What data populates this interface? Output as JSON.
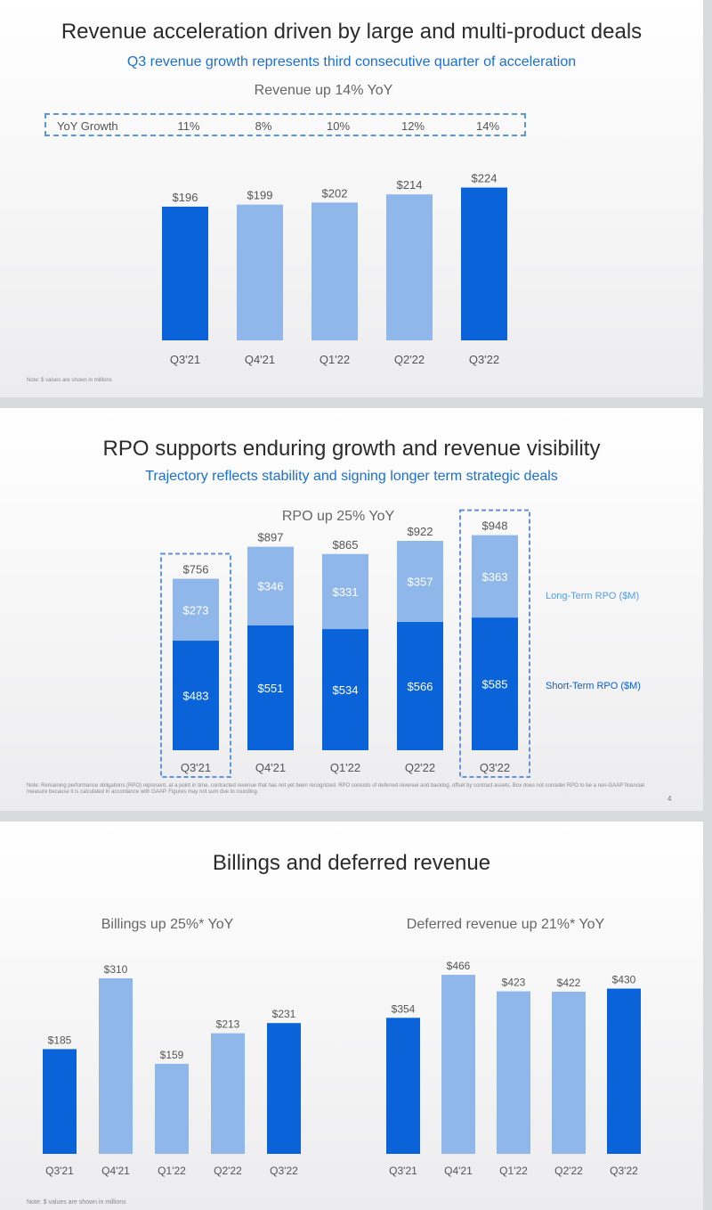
{
  "colors": {
    "dark_blue": "#0a63d8",
    "light_blue": "#8fb7ea",
    "accent_text": "#1a6fd6",
    "longterm_legend": "#5b9be2"
  },
  "slide1": {
    "title": "Revenue acceleration driven by large and multi-product deals",
    "subtitle": "Q3 revenue growth represents third consecutive quarter of acceleration",
    "headline": "Revenue up 14% YoY",
    "yoy_label": "YoY Growth",
    "yoy_values": [
      "11%",
      "8%",
      "10%",
      "12%",
      "14%"
    ],
    "note": "Note: $ values are shown in millions"
  },
  "slide2": {
    "title": "RPO supports enduring growth and revenue visibility",
    "subtitle": "Trajectory reflects stability and signing longer term strategic deals",
    "headline": "RPO up 25% YoY",
    "legend_long": "Long-Term RPO ($M)",
    "legend_short": "Short-Term RPO ($M)",
    "note": "Note: Remaining performance obligations (RPO) represent, at a point in time, contracted revenue that has not yet been recognized. RPO consists of deferred revenue and backlog, offset by contract assets. Box does not consider RPO to be a non-GAAP financial measure because it is calculated in accordance with GAAP.  Figures may not sum due to rounding.",
    "page_number": "4"
  },
  "slide3": {
    "title": "Billings and deferred revenue",
    "billings_headline": "Billings up 25%* YoY",
    "deferred_headline": "Deferred revenue up 21%* YoY",
    "note": "Note: $ values are shown in millions"
  },
  "chart_data": [
    {
      "id": "revenue",
      "type": "bar",
      "title": "Revenue up 14% YoY",
      "categories": [
        "Q3'21",
        "Q4'21",
        "Q1'22",
        "Q2'22",
        "Q3'22"
      ],
      "values": [
        196,
        199,
        202,
        214,
        224
      ],
      "labels": [
        "$196",
        "$199",
        "$202",
        "$214",
        "$224"
      ],
      "highlight": [
        true,
        false,
        false,
        false,
        true
      ]
    },
    {
      "id": "rpo",
      "type": "bar",
      "stacked": true,
      "title": "RPO up 25% YoY",
      "categories": [
        "Q3'21",
        "Q4'21",
        "Q1'22",
        "Q2'22",
        "Q3'22"
      ],
      "totals": [
        756,
        897,
        865,
        922,
        948
      ],
      "total_labels": [
        "$756",
        "$897",
        "$865",
        "$922",
        "$948"
      ],
      "series": [
        {
          "name": "Short-Term RPO ($M)",
          "values": [
            483,
            551,
            534,
            566,
            585
          ],
          "labels": [
            "$483",
            "$551",
            "$534",
            "$566",
            "$585"
          ]
        },
        {
          "name": "Long-Term RPO ($M)",
          "values": [
            273,
            346,
            331,
            357,
            363
          ],
          "labels": [
            "$273",
            "$346",
            "$331",
            "$357",
            "$363"
          ]
        }
      ],
      "boxed": [
        true,
        false,
        false,
        false,
        true
      ]
    },
    {
      "id": "billings",
      "type": "bar",
      "title": "Billings up 25%* YoY",
      "categories": [
        "Q3'21",
        "Q4'21",
        "Q1'22",
        "Q2'22",
        "Q3'22"
      ],
      "values": [
        185,
        310,
        159,
        213,
        231
      ],
      "labels": [
        "$185",
        "$310",
        "$159",
        "$213",
        "$231"
      ],
      "highlight": [
        true,
        false,
        false,
        false,
        true
      ]
    },
    {
      "id": "deferred",
      "type": "bar",
      "title": "Deferred revenue up 21%* YoY",
      "categories": [
        "Q3'21",
        "Q4'21",
        "Q1'22",
        "Q2'22",
        "Q3'22"
      ],
      "values": [
        354,
        466,
        423,
        422,
        430
      ],
      "labels": [
        "$354",
        "$466",
        "$423",
        "$422",
        "$430"
      ],
      "highlight": [
        true,
        false,
        false,
        false,
        true
      ]
    }
  ]
}
